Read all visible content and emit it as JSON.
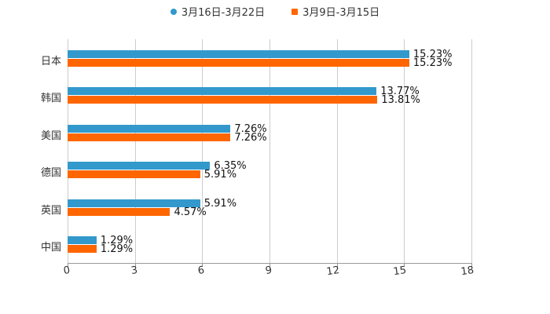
{
  "legend": [
    {
      "label": "3月16日-3月22日",
      "color": "#3399cc"
    },
    {
      "label": "3月9日-3月15日",
      "color": "#ff6600"
    }
  ],
  "chart_data": {
    "type": "bar",
    "orientation": "horizontal",
    "categories": [
      "日本",
      "韩国",
      "美国",
      "德国",
      "英国",
      "中国"
    ],
    "series": [
      {
        "name": "3月16日-3月22日",
        "color": "#3399cc",
        "values": [
          15.23,
          13.77,
          7.26,
          6.35,
          5.91,
          1.29
        ],
        "labels": [
          "15.23%",
          "13.77%",
          "7.26%",
          "6.35%",
          "5.91%",
          "1.29%"
        ]
      },
      {
        "name": "3月9日-3月15日",
        "color": "#ff6600",
        "values": [
          15.23,
          13.81,
          7.26,
          5.91,
          4.57,
          1.29
        ],
        "labels": [
          "15.23%",
          "13.81%",
          "7.26%",
          "5.91%",
          "4.57%",
          "1.29%"
        ]
      }
    ],
    "xticks": [
      "0",
      "3",
      "6",
      "9",
      "12",
      "15",
      "18"
    ],
    "xlim": [
      0,
      18
    ],
    "grid": true,
    "legend_position": "top",
    "title": "",
    "xlabel": "",
    "ylabel": ""
  }
}
